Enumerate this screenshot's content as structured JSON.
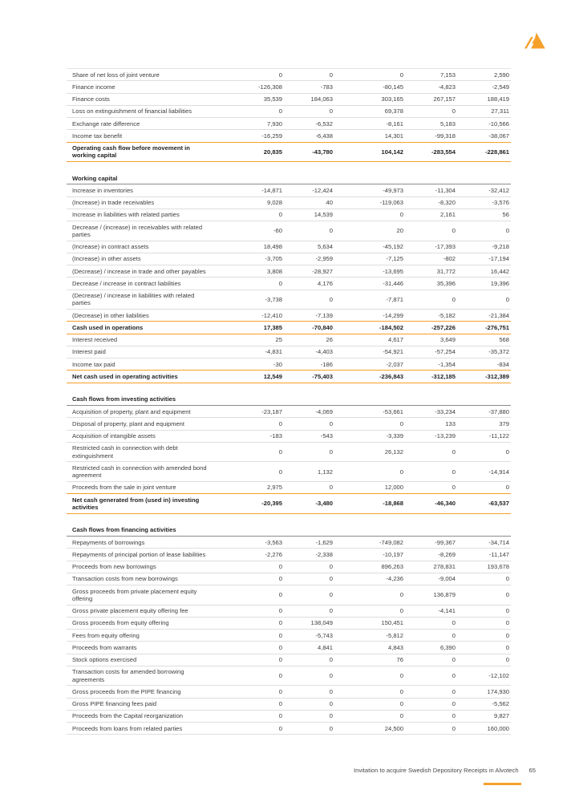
{
  "colors": {
    "accent_orange": "#f5a02b",
    "row_border": "#dedede",
    "header_border": "#8c8c8c",
    "text": "#3d3d3d"
  },
  "footer": {
    "text": "Invitation to acquire Swedish Depository Receipts in Alvotech",
    "page_number": "65"
  },
  "logo": {
    "name": "alvotech-logo"
  },
  "table": {
    "sections": [
      {
        "header": null,
        "rows": [
          {
            "label": "Share of net loss of joint venture",
            "values": [
              "0",
              "0",
              "0",
              "7,153",
              "2,590"
            ]
          },
          {
            "label": "Finance income",
            "values": [
              "-126,308",
              "-783",
              "-80,145",
              "-4,823",
              "-2,549"
            ]
          },
          {
            "label": "Finance costs",
            "values": [
              "35,539",
              "184,063",
              "303,165",
              "267,157",
              "188,419"
            ]
          },
          {
            "label": "Loss on extinguishment of financial liabilities",
            "values": [
              "0",
              "0",
              "69,378",
              "0",
              "27,311"
            ]
          },
          {
            "label": "Exchange rate difference",
            "values": [
              "7,930",
              "-6,532",
              "-8,161",
              "5,183",
              "-10,566"
            ]
          },
          {
            "label": "Income tax benefit",
            "values": [
              "-16,259",
              "-6,438",
              "14,301",
              "-99,318",
              "-38,067"
            ]
          },
          {
            "label": "Operating cash flow before movement in working capital",
            "values": [
              "20,835",
              "-43,780",
              "104,142",
              "-283,554",
              "-228,861"
            ],
            "total": true
          }
        ]
      },
      {
        "header": "Working capital",
        "rows": [
          {
            "label": "Increase in inventories",
            "values": [
              "-14,871",
              "-12,424",
              "-49,973",
              "-11,304",
              "-32,412"
            ]
          },
          {
            "label": "(Increase) in trade receivables",
            "values": [
              "9,028",
              "40",
              "-119,063",
              "-8,320",
              "-3,576"
            ]
          },
          {
            "label": "Increase in liabilities with related parties",
            "values": [
              "0",
              "14,539",
              "0",
              "2,161",
              "56"
            ]
          },
          {
            "label": "Decrease / (increase) in receivables with related parties",
            "values": [
              "-60",
              "0",
              "20",
              "0",
              "0"
            ]
          },
          {
            "label": "(Increase) in contract assets",
            "values": [
              "18,498",
              "5,634",
              "-45,192",
              "-17,393",
              "-9,218"
            ]
          },
          {
            "label": "(Increase) in other assets",
            "values": [
              "-3,705",
              "-2,959",
              "-7,125",
              "-802",
              "-17,194"
            ]
          },
          {
            "label": "(Decrease) / increase in trade and other payables",
            "values": [
              "3,808",
              "-28,927",
              "-13,695",
              "31,772",
              "16,442"
            ]
          },
          {
            "label": "Decrease / increase in contract liabilities",
            "values": [
              "0",
              "4,176",
              "-31,446",
              "35,396",
              "19,396"
            ]
          },
          {
            "label": "(Decrease) / increase in liabilities with related parties",
            "values": [
              "-3,738",
              "0",
              "-7,871",
              "0",
              "0"
            ]
          },
          {
            "label": "(Decrease) in other liabilities",
            "values": [
              "-12,410",
              "-7,139",
              "-14,299",
              "-5,182",
              "-21,384"
            ]
          },
          {
            "label": "Cash used in operations",
            "values": [
              "17,385",
              "-70,840",
              "-184,502",
              "-257,226",
              "-276,751"
            ],
            "total": true
          },
          {
            "label": "Interest received",
            "values": [
              "25",
              "26",
              "4,617",
              "3,649",
              "568"
            ]
          },
          {
            "label": "Interest paid",
            "values": [
              "-4,831",
              "-4,403",
              "-54,921",
              "-57,254",
              "-35,372"
            ]
          },
          {
            "label": "Income tax paid",
            "values": [
              "-30",
              "-186",
              "-2,037",
              "-1,354",
              "-834"
            ]
          },
          {
            "label": "Net cash used in operating activities",
            "values": [
              "12,549",
              "-75,403",
              "-236,843",
              "-312,185",
              "-312,389"
            ],
            "total": true
          }
        ]
      },
      {
        "header": "Cash flows from investing activities",
        "rows": [
          {
            "label": "Acquisition of property, plant and equipment",
            "values": [
              "-23,187",
              "-4,069",
              "-53,661",
              "-33,234",
              "-37,880"
            ]
          },
          {
            "label": "Disposal of property, plant and equipment",
            "values": [
              "0",
              "0",
              "0",
              "133",
              "379"
            ]
          },
          {
            "label": "Acquisition of intangible assets",
            "values": [
              "-183",
              "-543",
              "-3,339",
              "-13,239",
              "-11,122"
            ]
          },
          {
            "label": "Restricted cash in connection with debt extinguishment",
            "values": [
              "0",
              "0",
              "26,132",
              "0",
              "0"
            ]
          },
          {
            "label": "Restricted cash in connection with amended bond agreement",
            "values": [
              "0",
              "1,132",
              "0",
              "0",
              "-14,914"
            ]
          },
          {
            "label": "Proceeds from the sale in joint venture",
            "values": [
              "2,975",
              "0",
              "12,000",
              "0",
              "0"
            ]
          },
          {
            "label": "Net cash generated from (used in) investing activities",
            "values": [
              "-20,395",
              "-3,480",
              "-18,868",
              "-46,340",
              "-63,537"
            ],
            "total": true
          }
        ]
      },
      {
        "header": "Cash flows from financing activities",
        "rows": [
          {
            "label": "Repayments of borrowings",
            "values": [
              "-3,563",
              "-1,629",
              "-749,082",
              "-99,367",
              "-34,714"
            ]
          },
          {
            "label": "Repayments of principal portion of lease liabilities",
            "values": [
              "-2,276",
              "-2,338",
              "-10,197",
              "-8,269",
              "-11,147"
            ]
          },
          {
            "label": "Proceeds from new borrowings",
            "values": [
              "0",
              "0",
              "896,263",
              "278,831",
              "193,678"
            ]
          },
          {
            "label": "Transaction costs from new borrowings",
            "values": [
              "0",
              "0",
              "-4,236",
              "-9,004",
              "0"
            ]
          },
          {
            "label": "Gross proceeds from private placement equity offering",
            "values": [
              "0",
              "0",
              "0",
              "136,879",
              "0"
            ]
          },
          {
            "label": "Gross private placement equity offering fee",
            "values": [
              "0",
              "0",
              "0",
              "-4,141",
              "0"
            ]
          },
          {
            "label": "Gross proceeds from equity offering",
            "values": [
              "0",
              "138,049",
              "150,451",
              "0",
              "0"
            ]
          },
          {
            "label": "Fees from equity offering",
            "values": [
              "0",
              "-5,743",
              "-5,812",
              "0",
              "0"
            ]
          },
          {
            "label": "Proceeds from warrants",
            "values": [
              "0",
              "4,841",
              "4,843",
              "6,390",
              "0"
            ]
          },
          {
            "label": "Stock options exercised",
            "values": [
              "0",
              "0",
              "76",
              "0",
              "0"
            ]
          },
          {
            "label": "Transaction costs for amended borrowing agreements",
            "values": [
              "0",
              "0",
              "0",
              "0",
              "-12,102"
            ]
          },
          {
            "label": "Gross proceeds from the PIPE financing",
            "values": [
              "0",
              "0",
              "0",
              "0",
              "174,930"
            ]
          },
          {
            "label": "Gross PIPE financing fees paid",
            "values": [
              "0",
              "0",
              "0",
              "0",
              "-5,562"
            ]
          },
          {
            "label": "Proceeds from the Capital reorganization",
            "values": [
              "0",
              "0",
              "0",
              "0",
              "9,827"
            ]
          },
          {
            "label": "Proceeds from loans from related parties",
            "values": [
              "0",
              "0",
              "24,500",
              "0",
              "160,000"
            ]
          }
        ]
      }
    ]
  }
}
